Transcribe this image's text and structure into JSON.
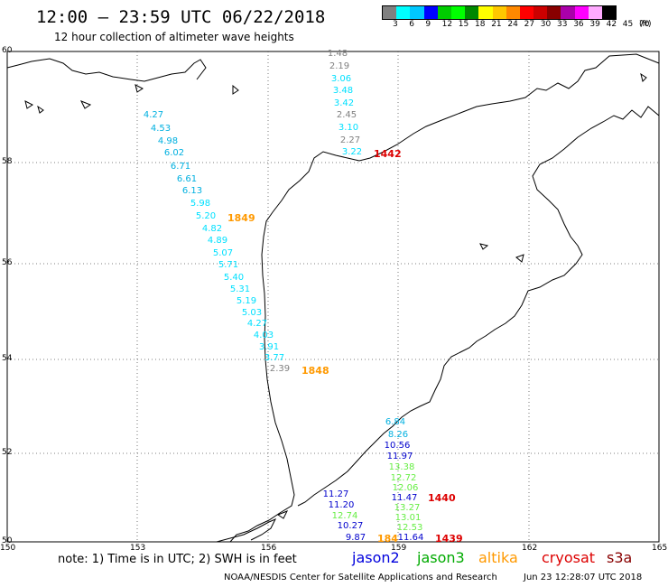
{
  "header": {
    "title": "12:00 – 23:59 UTC 06/22/2018",
    "subtitle": "12 hour collection of altimeter wave heights"
  },
  "colorbar": {
    "colors": [
      "#808080",
      "#00ffff",
      "#00c8ff",
      "#0000ff",
      "#00cc00",
      "#00ff00",
      "#008800",
      "#ffff00",
      "#ffc800",
      "#ff8800",
      "#ff0000",
      "#cc0000",
      "#880000",
      "#aa00aa",
      "#ff00ff",
      "#ffaaff",
      "#000000"
    ],
    "labels": [
      "3",
      "6",
      "9",
      "12",
      "15",
      "18",
      "21",
      "24",
      "27",
      "30",
      "33",
      "36",
      "39",
      "42",
      "45",
      "70",
      "(ft)"
    ]
  },
  "axes": {
    "lon_ticks": [
      "150",
      "153",
      "156",
      "159",
      "162",
      "165"
    ],
    "lat_ticks": [
      "60",
      "58",
      "56",
      "54",
      "52",
      "50"
    ]
  },
  "tracks": [
    {
      "name": "track-a",
      "values": [
        {
          "v": "1.48",
          "c": "#808080"
        },
        {
          "v": "2.19",
          "c": "#808080"
        },
        {
          "v": "3.06",
          "c": "#00e0ff"
        },
        {
          "v": "3.48",
          "c": "#00e0ff"
        },
        {
          "v": "3.42",
          "c": "#00e0ff"
        },
        {
          "v": "2.45",
          "c": "#808080"
        },
        {
          "v": "3.10",
          "c": "#00e0ff"
        },
        {
          "v": "2.27",
          "c": "#808080"
        },
        {
          "v": "3.22",
          "c": "#00e0ff"
        }
      ]
    },
    {
      "name": "track-b",
      "values": [
        {
          "v": "4.27",
          "c": "#00b0e0"
        },
        {
          "v": "4.53",
          "c": "#00b0e0"
        },
        {
          "v": "4.98",
          "c": "#00b0e0"
        },
        {
          "v": "6.02",
          "c": "#00b0e0"
        },
        {
          "v": "6.71",
          "c": "#00b0e0"
        },
        {
          "v": "6.61",
          "c": "#00b0e0"
        },
        {
          "v": "6.13",
          "c": "#00b0e0"
        },
        {
          "v": "5.98",
          "c": "#00e0ff"
        },
        {
          "v": "5.20",
          "c": "#00e0ff"
        },
        {
          "v": "4.82",
          "c": "#00e0ff"
        },
        {
          "v": "4.89",
          "c": "#00e0ff"
        },
        {
          "v": "5.07",
          "c": "#00e0ff"
        },
        {
          "v": "5.71",
          "c": "#00e0ff"
        },
        {
          "v": "5.40",
          "c": "#00e0ff"
        },
        {
          "v": "5.31",
          "c": "#00e0ff"
        },
        {
          "v": "5.19",
          "c": "#00e0ff"
        },
        {
          "v": "5.03",
          "c": "#00e0ff"
        },
        {
          "v": "4.27",
          "c": "#00e0ff"
        },
        {
          "v": "4.03",
          "c": "#00e0ff"
        },
        {
          "v": "3.91",
          "c": "#00e0ff"
        },
        {
          "v": "3.77",
          "c": "#00e0ff"
        },
        {
          "v": "2.39",
          "c": "#808080"
        }
      ]
    },
    {
      "name": "track-c",
      "values": [
        {
          "v": "6.84",
          "c": "#00b0e0"
        },
        {
          "v": "8.26",
          "c": "#00b0e0"
        },
        {
          "v": "10.56",
          "c": "#0000cc"
        },
        {
          "v": "11.97",
          "c": "#0000cc"
        },
        {
          "v": "13.38",
          "c": "#66ee44"
        },
        {
          "v": "12.72",
          "c": "#66ee44"
        },
        {
          "v": "12.06",
          "c": "#66ee44"
        },
        {
          "v": "11.47",
          "c": "#0000cc"
        },
        {
          "v": "13.27",
          "c": "#66ee44"
        },
        {
          "v": "13.01",
          "c": "#66ee44"
        },
        {
          "v": "12.53",
          "c": "#66ee44"
        },
        {
          "v": "11.64",
          "c": "#0000cc"
        }
      ]
    },
    {
      "name": "track-d",
      "values": [
        {
          "v": "11.27",
          "c": "#0000cc"
        },
        {
          "v": "11.20",
          "c": "#0000cc"
        },
        {
          "v": "12.74",
          "c": "#66ee44"
        },
        {
          "v": "10.27",
          "c": "#0000cc"
        },
        {
          "v": "9.87",
          "c": "#0000cc"
        }
      ]
    }
  ],
  "pass_times": [
    {
      "t": "1442",
      "c": "#dd0000"
    },
    {
      "t": "1849",
      "c": "#ff9900"
    },
    {
      "t": "1848",
      "c": "#ff9900"
    },
    {
      "t": "1440",
      "c": "#dd0000"
    },
    {
      "t": "184",
      "c": "#ff9900"
    },
    {
      "t": "1439",
      "c": "#dd0000"
    }
  ],
  "note": "note:  1) Time is in UTC;  2) SWH is in feet",
  "legend": [
    {
      "label": "jason2",
      "c": "#0000dd"
    },
    {
      "label": "jason3",
      "c": "#00aa00"
    },
    {
      "label": "altika",
      "c": "#ff9900"
    },
    {
      "label": "cryosat",
      "c": "#dd0000"
    },
    {
      "label": "s3a",
      "c": "#880000"
    }
  ],
  "footer": {
    "left": "NOAA/NESDIS Center for Satellite Applications and Research",
    "right": "Jun 23 12:28:07 UTC 2018"
  }
}
